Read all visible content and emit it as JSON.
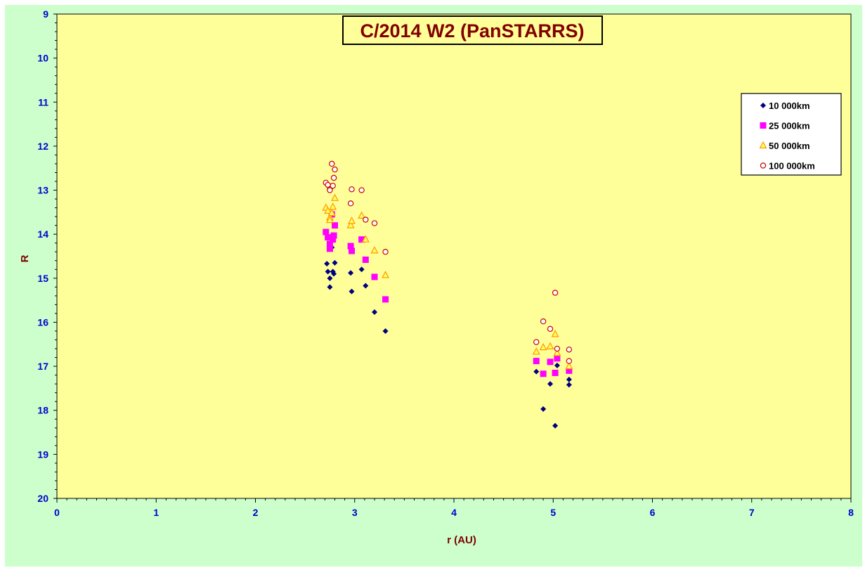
{
  "colors": {
    "outer_background": "#ccffcc",
    "plot_background": "#ffff99",
    "title_text": "#800000",
    "tick_text": "#0000cc",
    "axis_label": "#800000"
  },
  "chart_data": {
    "type": "scatter",
    "title": "C/2014 W2 (PanSTARRS)",
    "xlabel": "r (AU)",
    "ylabel": "R",
    "xlim": [
      0,
      8
    ],
    "ylim": [
      20,
      9
    ],
    "y_inverted": true,
    "x_ticks": [
      "0",
      "1",
      "2",
      "3",
      "4",
      "5",
      "6",
      "7",
      "8"
    ],
    "y_ticks": [
      "9",
      "10",
      "11",
      "12",
      "13",
      "14",
      "15",
      "16",
      "17",
      "18",
      "19",
      "20"
    ],
    "grid": false,
    "legend_position": "top-right",
    "series": [
      {
        "name": "10 000km",
        "marker": "diamond",
        "color": "#000080",
        "points": [
          [
            2.72,
            14.67
          ],
          [
            2.73,
            14.85
          ],
          [
            2.75,
            15.0
          ],
          [
            2.75,
            15.2
          ],
          [
            2.77,
            14.3
          ],
          [
            2.78,
            14.85
          ],
          [
            2.79,
            14.9
          ],
          [
            2.8,
            14.65
          ],
          [
            2.96,
            14.88
          ],
          [
            2.97,
            15.3
          ],
          [
            3.07,
            14.8
          ],
          [
            3.11,
            15.17
          ],
          [
            3.2,
            15.77
          ],
          [
            3.31,
            16.2
          ],
          [
            4.83,
            17.12
          ],
          [
            4.9,
            17.97
          ],
          [
            4.97,
            17.4
          ],
          [
            5.02,
            18.35
          ],
          [
            5.04,
            16.98
          ],
          [
            5.16,
            17.3
          ],
          [
            5.16,
            17.42
          ]
        ]
      },
      {
        "name": "25 000km",
        "marker": "square",
        "color": "#ff00ff",
        "points": [
          [
            2.71,
            13.95
          ],
          [
            2.73,
            14.07
          ],
          [
            2.75,
            14.22
          ],
          [
            2.75,
            14.33
          ],
          [
            2.77,
            13.55
          ],
          [
            2.78,
            14.12
          ],
          [
            2.79,
            14.03
          ],
          [
            2.8,
            13.8
          ],
          [
            2.96,
            14.27
          ],
          [
            2.97,
            14.38
          ],
          [
            3.07,
            14.12
          ],
          [
            3.11,
            14.58
          ],
          [
            3.2,
            14.97
          ],
          [
            3.31,
            15.48
          ],
          [
            4.83,
            16.88
          ],
          [
            4.9,
            17.17
          ],
          [
            4.97,
            16.9
          ],
          [
            5.02,
            17.15
          ],
          [
            5.04,
            16.82
          ],
          [
            5.16,
            17.1
          ]
        ]
      },
      {
        "name": "50 000km",
        "marker": "triangle",
        "color": "#ff9900",
        "points": [
          [
            2.71,
            13.4
          ],
          [
            2.73,
            13.47
          ],
          [
            2.75,
            13.62
          ],
          [
            2.75,
            13.68
          ],
          [
            2.77,
            13.52
          ],
          [
            2.78,
            13.38
          ],
          [
            2.8,
            13.18
          ],
          [
            2.96,
            13.8
          ],
          [
            2.97,
            13.7
          ],
          [
            3.07,
            13.58
          ],
          [
            3.11,
            14.12
          ],
          [
            3.2,
            14.37
          ],
          [
            3.31,
            14.93
          ],
          [
            4.83,
            16.67
          ],
          [
            4.9,
            16.57
          ],
          [
            4.97,
            16.55
          ],
          [
            5.02,
            16.27
          ],
          [
            5.04,
            16.7
          ],
          [
            5.16,
            17.0
          ]
        ]
      },
      {
        "name": "100 000km",
        "marker": "circle",
        "color": "#cc0000",
        "points": [
          [
            2.71,
            12.83
          ],
          [
            2.73,
            12.88
          ],
          [
            2.75,
            12.98
          ],
          [
            2.75,
            13.0
          ],
          [
            2.77,
            12.4
          ],
          [
            2.78,
            12.9
          ],
          [
            2.79,
            12.72
          ],
          [
            2.8,
            12.53
          ],
          [
            2.96,
            13.3
          ],
          [
            2.97,
            12.98
          ],
          [
            3.07,
            13.0
          ],
          [
            3.11,
            13.67
          ],
          [
            3.2,
            13.75
          ],
          [
            3.31,
            14.4
          ],
          [
            4.83,
            16.45
          ],
          [
            4.9,
            15.98
          ],
          [
            4.97,
            16.15
          ],
          [
            5.02,
            15.33
          ],
          [
            5.04,
            16.6
          ],
          [
            5.16,
            16.62
          ],
          [
            5.16,
            16.88
          ]
        ]
      }
    ]
  }
}
